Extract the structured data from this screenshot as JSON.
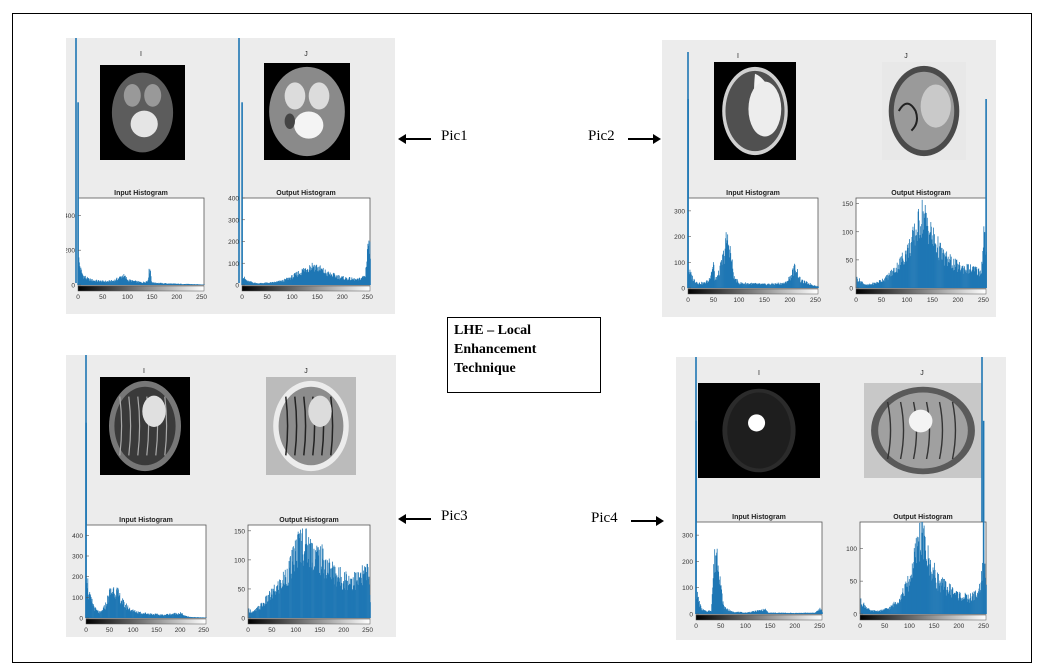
{
  "center_box": {
    "lines": [
      "LHE – Local",
      "Enhancement",
      "Technique"
    ]
  },
  "pic_labels": {
    "pic1": "Pic1",
    "pic2": "Pic2",
    "pic3": "Pic3",
    "pic4": "Pic4"
  },
  "colors": {
    "bar": "#1f77b4",
    "panel_bg": "#ececec",
    "frame": "#000000"
  },
  "chart_data": [
    {
      "type": "bar",
      "id": "pic1-input",
      "title": "Input Histogram",
      "image_titles": [
        "I",
        "J"
      ],
      "xlim": [
        0,
        255
      ],
      "xticks": [
        0,
        50,
        100,
        150,
        200,
        250
      ],
      "ylim": [
        0,
        500
      ],
      "yticks": [
        0,
        200,
        400
      ],
      "spike": {
        "x": 0,
        "y": 2400
      },
      "envelope": [
        [
          1,
          150
        ],
        [
          5,
          90
        ],
        [
          10,
          55
        ],
        [
          20,
          35
        ],
        [
          30,
          28
        ],
        [
          40,
          25
        ],
        [
          50,
          22
        ],
        [
          60,
          22
        ],
        [
          70,
          25
        ],
        [
          80,
          38
        ],
        [
          90,
          58
        ],
        [
          95,
          48
        ],
        [
          100,
          30
        ],
        [
          110,
          24
        ],
        [
          120,
          20
        ],
        [
          130,
          15
        ],
        [
          140,
          25
        ],
        [
          145,
          115
        ],
        [
          148,
          25
        ],
        [
          150,
          15
        ],
        [
          170,
          10
        ],
        [
          200,
          7
        ],
        [
          230,
          5
        ],
        [
          250,
          3
        ],
        [
          255,
          2
        ]
      ]
    },
    {
      "type": "bar",
      "id": "pic1-output",
      "title": "Output Histogram",
      "xlim": [
        0,
        255
      ],
      "xticks": [
        0,
        50,
        100,
        150,
        200,
        250
      ],
      "ylim": [
        0,
        400
      ],
      "yticks": [
        0,
        100,
        200,
        300,
        400
      ],
      "spike": {
        "x": 0,
        "y": 2400
      },
      "envelope": [
        [
          1,
          40
        ],
        [
          10,
          18
        ],
        [
          30,
          8
        ],
        [
          60,
          12
        ],
        [
          80,
          20
        ],
        [
          100,
          40
        ],
        [
          120,
          70
        ],
        [
          130,
          85
        ],
        [
          140,
          95
        ],
        [
          150,
          85
        ],
        [
          170,
          55
        ],
        [
          200,
          35
        ],
        [
          230,
          25
        ],
        [
          245,
          45
        ],
        [
          250,
          210
        ],
        [
          255,
          160
        ]
      ]
    },
    {
      "type": "bar",
      "id": "pic2-input",
      "title": "Input Histogram",
      "image_titles": [
        "I",
        "J"
      ],
      "xlim": [
        0,
        255
      ],
      "xticks": [
        0,
        50,
        100,
        150,
        200,
        250
      ],
      "ylim": [
        0,
        350
      ],
      "yticks": [
        0,
        100,
        200,
        300
      ],
      "spike": {
        "x": 0,
        "y": 1200
      },
      "envelope": [
        [
          1,
          70
        ],
        [
          10,
          35
        ],
        [
          20,
          20
        ],
        [
          30,
          20
        ],
        [
          40,
          30
        ],
        [
          50,
          110
        ],
        [
          52,
          30
        ],
        [
          60,
          60
        ],
        [
          70,
          140
        ],
        [
          75,
          200
        ],
        [
          80,
          180
        ],
        [
          90,
          40
        ],
        [
          100,
          20
        ],
        [
          150,
          15
        ],
        [
          190,
          20
        ],
        [
          200,
          45
        ],
        [
          210,
          90
        ],
        [
          220,
          30
        ],
        [
          255,
          5
        ]
      ]
    },
    {
      "type": "bar",
      "id": "pic2-output",
      "title": "Output Histogram",
      "xlim": [
        0,
        255
      ],
      "xticks": [
        0,
        50,
        100,
        150,
        200,
        250
      ],
      "ylim": [
        0,
        160
      ],
      "yticks": [
        0,
        50,
        100,
        150
      ],
      "spike": {
        "x": 255,
        "y": 220
      },
      "envelope": [
        [
          1,
          18
        ],
        [
          20,
          5
        ],
        [
          40,
          10
        ],
        [
          60,
          20
        ],
        [
          80,
          40
        ],
        [
          100,
          70
        ],
        [
          110,
          90
        ],
        [
          120,
          115
        ],
        [
          130,
          140
        ],
        [
          140,
          120
        ],
        [
          150,
          95
        ],
        [
          170,
          60
        ],
        [
          200,
          40
        ],
        [
          230,
          35
        ],
        [
          245,
          30
        ],
        [
          250,
          110
        ],
        [
          255,
          60
        ]
      ]
    },
    {
      "type": "bar",
      "id": "pic3-input",
      "title": "Input Histogram",
      "image_titles": [
        "I",
        "J"
      ],
      "xlim": [
        0,
        255
      ],
      "xticks": [
        0,
        50,
        100,
        150,
        200,
        250
      ],
      "ylim": [
        0,
        450
      ],
      "yticks": [
        0,
        100,
        200,
        300,
        400
      ],
      "spike": {
        "x": 0,
        "y": 2400
      },
      "envelope": [
        [
          1,
          230
        ],
        [
          5,
          120
        ],
        [
          10,
          90
        ],
        [
          20,
          40
        ],
        [
          30,
          25
        ],
        [
          40,
          60
        ],
        [
          50,
          130
        ],
        [
          60,
          150
        ],
        [
          70,
          110
        ],
        [
          80,
          70
        ],
        [
          90,
          50
        ],
        [
          100,
          35
        ],
        [
          120,
          25
        ],
        [
          140,
          20
        ],
        [
          160,
          15
        ],
        [
          180,
          20
        ],
        [
          200,
          25
        ],
        [
          210,
          10
        ],
        [
          220,
          5
        ],
        [
          255,
          2
        ]
      ]
    },
    {
      "type": "bar",
      "id": "pic3-output",
      "title": "Output Histogram",
      "xlim": [
        0,
        255
      ],
      "xticks": [
        0,
        50,
        100,
        150,
        200,
        250
      ],
      "ylim": [
        0,
        160
      ],
      "yticks": [
        0,
        50,
        100,
        150
      ],
      "envelope": [
        [
          1,
          15
        ],
        [
          10,
          10
        ],
        [
          30,
          25
        ],
        [
          50,
          45
        ],
        [
          70,
          65
        ],
        [
          90,
          95
        ],
        [
          100,
          125
        ],
        [
          110,
          140
        ],
        [
          120,
          135
        ],
        [
          130,
          125
        ],
        [
          150,
          110
        ],
        [
          170,
          90
        ],
        [
          190,
          75
        ],
        [
          210,
          70
        ],
        [
          230,
          70
        ],
        [
          250,
          85
        ],
        [
          255,
          40
        ]
      ]
    },
    {
      "type": "bar",
      "id": "pic4-input",
      "title": "Input Histogram",
      "image_titles": [
        "I",
        "J"
      ],
      "xlim": [
        0,
        255
      ],
      "xticks": [
        0,
        50,
        100,
        150,
        200,
        250
      ],
      "ylim": [
        0,
        350
      ],
      "yticks": [
        0,
        100,
        200,
        300
      ],
      "spike": {
        "x": 0,
        "y": 1200
      },
      "envelope": [
        [
          1,
          80
        ],
        [
          10,
          20
        ],
        [
          20,
          10
        ],
        [
          30,
          15
        ],
        [
          35,
          180
        ],
        [
          40,
          260
        ],
        [
          45,
          220
        ],
        [
          50,
          100
        ],
        [
          55,
          30
        ],
        [
          70,
          10
        ],
        [
          100,
          5
        ],
        [
          140,
          18
        ],
        [
          145,
          5
        ],
        [
          200,
          4
        ],
        [
          240,
          5
        ],
        [
          250,
          20
        ],
        [
          255,
          10
        ]
      ]
    },
    {
      "type": "bar",
      "id": "pic4-output",
      "title": "Output Histogram",
      "xlim": [
        0,
        255
      ],
      "xticks": [
        0,
        50,
        100,
        150,
        200,
        250
      ],
      "ylim": [
        0,
        140
      ],
      "yticks": [
        0,
        50,
        100
      ],
      "spike": {
        "x": 250,
        "y": 220
      },
      "envelope": [
        [
          1,
          20
        ],
        [
          20,
          5
        ],
        [
          40,
          5
        ],
        [
          60,
          10
        ],
        [
          80,
          25
        ],
        [
          100,
          55
        ],
        [
          110,
          90
        ],
        [
          120,
          125
        ],
        [
          125,
          130
        ],
        [
          130,
          110
        ],
        [
          140,
          80
        ],
        [
          160,
          50
        ],
        [
          180,
          40
        ],
        [
          200,
          30
        ],
        [
          220,
          25
        ],
        [
          240,
          35
        ],
        [
          250,
          85
        ],
        [
          255,
          40
        ]
      ]
    }
  ]
}
